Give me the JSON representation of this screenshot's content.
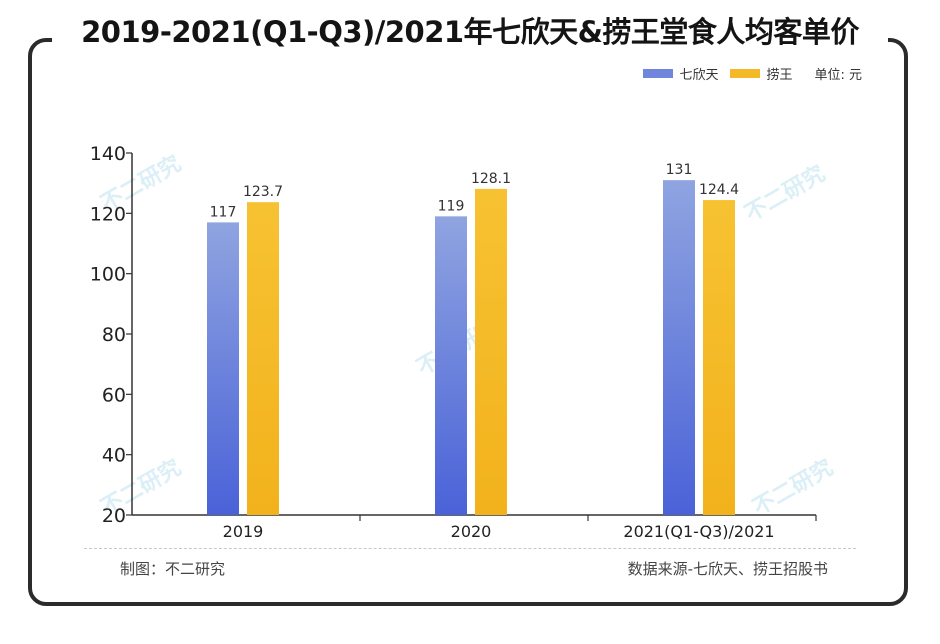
{
  "title": "2019-2021(Q1-Q3)/2021年七欣天&捞王堂食人均客单价",
  "legend": {
    "unit_label": "单位: 元"
  },
  "watermark": "不二研究",
  "footer": {
    "credit": "制图：不二研究",
    "source": "数据来源-七欣天、捞王招股书"
  },
  "chart_data": {
    "type": "bar",
    "categories": [
      "2019",
      "2020",
      "2021(Q1-Q3)/2021"
    ],
    "series": [
      {
        "name": "七欣天",
        "values": [
          117,
          119,
          131
        ],
        "labels": [
          "117",
          "119",
          "131"
        ],
        "color_top": "#8fa4e0",
        "color_bottom": "#4a62d8"
      },
      {
        "name": "捞王",
        "values": [
          123.7,
          128.1,
          124.4
        ],
        "labels": [
          "123.7",
          "128.1",
          "124.4"
        ],
        "color_top": "#f7c232",
        "color_bottom": "#f2b21c"
      }
    ],
    "ylim": [
      20,
      140
    ],
    "yticks": [
      20,
      40,
      60,
      80,
      100,
      120,
      140
    ],
    "grid": false,
    "legend_position": "top-right",
    "xlabel": "",
    "ylabel": ""
  }
}
